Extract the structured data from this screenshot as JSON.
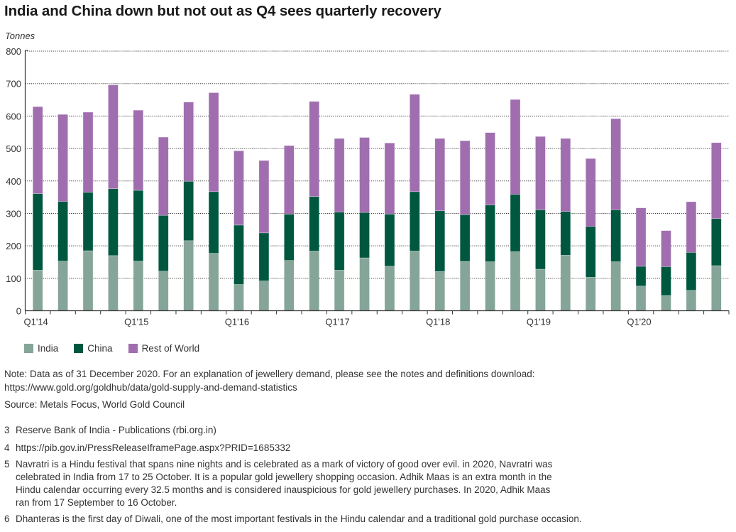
{
  "chart_data": {
    "type": "bar",
    "stacked": true,
    "title": "India and China down but not out as Q4 sees quarterly recovery",
    "ylabel": "Tonnes",
    "xlabel": "",
    "ylim": [
      0,
      800
    ],
    "yticks": [
      0,
      100,
      200,
      300,
      400,
      500,
      600,
      700,
      800
    ],
    "grid": true,
    "legend_position": "bottom-left",
    "categories": [
      "Q1'14",
      "Q2'14",
      "Q3'14",
      "Q4'14",
      "Q1'15",
      "Q2'15",
      "Q3'15",
      "Q4'15",
      "Q1'16",
      "Q2'16",
      "Q3'16",
      "Q4'16",
      "Q1'17",
      "Q2'17",
      "Q3'17",
      "Q4'17",
      "Q1'18",
      "Q2'18",
      "Q3'18",
      "Q4'18",
      "Q1'19",
      "Q2'19",
      "Q3'19",
      "Q4'19",
      "Q1'20",
      "Q2'20",
      "Q3'20",
      "Q4'20"
    ],
    "xtick_labels": [
      {
        "index": 0,
        "label": "Q1'14"
      },
      {
        "index": 4,
        "label": "Q1'15"
      },
      {
        "index": 8,
        "label": "Q1'16"
      },
      {
        "index": 12,
        "label": "Q1'17"
      },
      {
        "index": 16,
        "label": "Q1'18"
      },
      {
        "index": 20,
        "label": "Q1'19"
      },
      {
        "index": 24,
        "label": "Q1'20"
      }
    ],
    "series": [
      {
        "name": "India",
        "color": "#85a598",
        "values": [
          125,
          153,
          185,
          170,
          153,
          122,
          216,
          177,
          81,
          92,
          155,
          184,
          125,
          163,
          137,
          184,
          121,
          152,
          151,
          182,
          128,
          171,
          103,
          151,
          76,
          47,
          63,
          139
        ]
      },
      {
        "name": "China",
        "color": "#00573f",
        "values": [
          236,
          184,
          180,
          206,
          218,
          172,
          183,
          190,
          183,
          148,
          143,
          168,
          179,
          140,
          161,
          183,
          187,
          144,
          175,
          177,
          183,
          135,
          157,
          160,
          61,
          89,
          117,
          145
        ]
      },
      {
        "name": "Rest of World",
        "color": "#a06eaf",
        "values": [
          268,
          268,
          247,
          320,
          247,
          241,
          244,
          305,
          229,
          223,
          211,
          293,
          227,
          231,
          219,
          300,
          223,
          228,
          223,
          292,
          226,
          225,
          209,
          281,
          180,
          111,
          156,
          234
        ]
      }
    ]
  },
  "legend": [
    {
      "label": "India",
      "color": "#85a598"
    },
    {
      "label": "China",
      "color": "#00573f"
    },
    {
      "label": "Rest of World",
      "color": "#a06eaf"
    }
  ],
  "note": {
    "line1": "Note: Data as of 31 December 2020. For an explanation of jewellery demand, please see the notes and definitions download:",
    "line2": "https://www.gold.org/goldhub/data/gold-supply-and-demand-statistics",
    "source": "Source: Metals Focus, World Gold Council"
  },
  "footnotes": [
    {
      "num": "3",
      "text": "Reserve Bank of India - Publications (rbi.org.in)"
    },
    {
      "num": "4",
      "text": "https://pib.gov.in/PressReleaseIframePage.aspx?PRID=1685332"
    },
    {
      "num": "5",
      "lines": [
        "Navratri is a Hindu festival that spans nine nights and is celebrated as a mark of victory of good over evil. in 2020, Navratri was",
        "celebrated in India from 17 to 25 October. It is a popular gold jewellery shopping occasion. Adhik Maas is an extra month in the",
        "Hindu calendar occurring every 32.5 months and is considered inauspicious for gold jewellery purchases. In 2020, Adhik Maas",
        "ran from 17 September to 16 October."
      ]
    },
    {
      "num": "6",
      "text": "Dhanteras is the first day of Diwali, one of the most important festivals in the Hindu calendar and a traditional gold purchase occasion."
    }
  ]
}
